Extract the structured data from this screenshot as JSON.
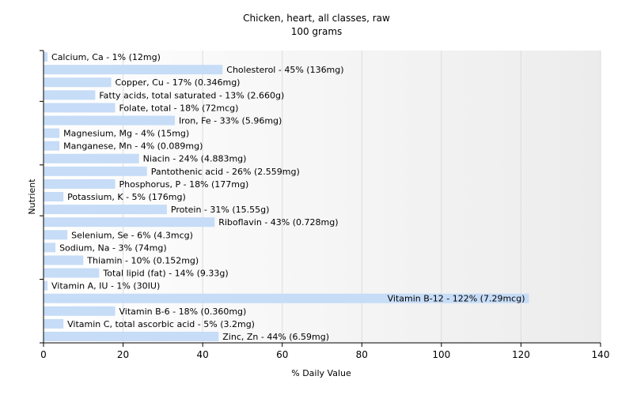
{
  "chart_data": {
    "type": "bar",
    "orientation": "horizontal",
    "title": "Chicken, heart, all classes, raw",
    "subtitle": "100 grams",
    "xlabel": "% Daily Value",
    "ylabel": "Nutrient",
    "xlim": [
      0,
      140
    ],
    "xticks": [
      0,
      20,
      40,
      60,
      80,
      100,
      120,
      140
    ],
    "grid": true,
    "bar_color": "#c6dcf7",
    "categories": [
      "Calcium, Ca",
      "Cholesterol",
      "Copper, Cu",
      "Fatty acids, total saturated",
      "Folate, total",
      "Iron, Fe",
      "Magnesium, Mg",
      "Manganese, Mn",
      "Niacin",
      "Pantothenic acid",
      "Phosphorus, P",
      "Potassium, K",
      "Protein",
      "Riboflavin",
      "Selenium, Se",
      "Sodium, Na",
      "Thiamin",
      "Total lipid (fat)",
      "Vitamin A, IU",
      "Vitamin B-12",
      "Vitamin B-6",
      "Vitamin C, total ascorbic acid",
      "Zinc, Zn"
    ],
    "values": [
      1,
      45,
      17,
      13,
      18,
      33,
      4,
      4,
      24,
      26,
      18,
      5,
      31,
      43,
      6,
      3,
      10,
      14,
      1,
      122,
      18,
      5,
      44
    ],
    "labels": [
      "Calcium, Ca - 1% (12mg)",
      "Cholesterol - 45% (136mg)",
      "Copper, Cu - 17% (0.346mg)",
      "Fatty acids, total saturated - 13% (2.660g)",
      "Folate, total - 18% (72mcg)",
      "Iron, Fe - 33% (5.96mg)",
      "Magnesium, Mg - 4% (15mg)",
      "Manganese, Mn - 4% (0.089mg)",
      "Niacin - 24% (4.883mg)",
      "Pantothenic acid - 26% (2.559mg)",
      "Phosphorus, P - 18% (177mg)",
      "Potassium, K - 5% (176mg)",
      "Protein - 31% (15.55g)",
      "Riboflavin - 43% (0.728mg)",
      "Selenium, Se - 6% (4.3mcg)",
      "Sodium, Na - 3% (74mg)",
      "Thiamin - 10% (0.152mg)",
      "Total lipid (fat) - 14% (9.33g)",
      "Vitamin A, IU - 1% (30IU)",
      "Vitamin B-12 - 122% (7.29mcg)",
      "Vitamin B-6 - 18% (0.360mg)",
      "Vitamin C, total ascorbic acid - 5% (3.2mg)",
      "Zinc, Zn - 44% (6.59mg)"
    ]
  }
}
